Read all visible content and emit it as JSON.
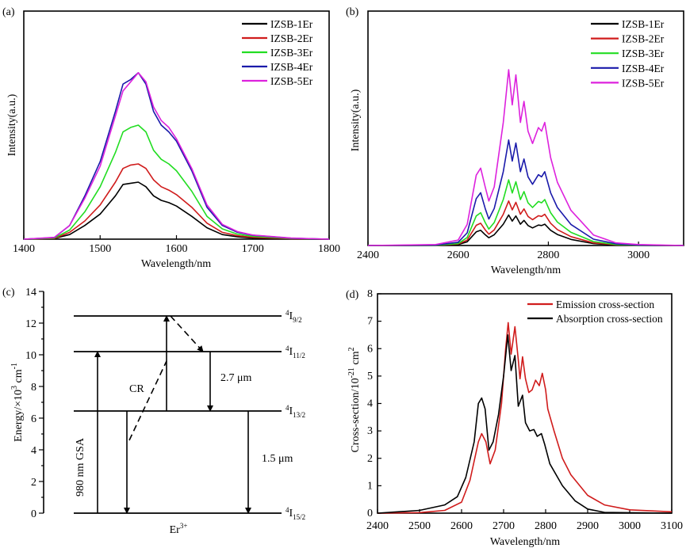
{
  "chart_data": [
    {
      "panel": "(a)",
      "type": "line",
      "xlabel": "Wavelength/nm",
      "ylabel": "Intensity(a.u.)",
      "xlim": [
        1400,
        1800
      ],
      "ylim": [
        0,
        1
      ],
      "xticks": [
        1400,
        1500,
        1600,
        1700,
        1800
      ],
      "yticks_shown": false,
      "grid": false,
      "legend": "top-right",
      "x": [
        1400,
        1440,
        1460,
        1480,
        1500,
        1520,
        1530,
        1540,
        1550,
        1560,
        1570,
        1580,
        1590,
        1600,
        1620,
        1640,
        1660,
        1680,
        1700,
        1750,
        1800
      ],
      "series": [
        {
          "name": "IZSB-1Er",
          "color": "#000000",
          "values": [
            0,
            0.003,
            0.02,
            0.06,
            0.11,
            0.19,
            0.24,
            0.245,
            0.25,
            0.23,
            0.19,
            0.17,
            0.16,
            0.145,
            0.1,
            0.05,
            0.02,
            0.01,
            0.005,
            0.001,
            0
          ]
        },
        {
          "name": "IZSB-2Er",
          "color": "#d01c1c",
          "values": [
            0,
            0.003,
            0.03,
            0.08,
            0.15,
            0.25,
            0.31,
            0.325,
            0.33,
            0.31,
            0.26,
            0.23,
            0.215,
            0.195,
            0.14,
            0.07,
            0.03,
            0.015,
            0.008,
            0.002,
            0
          ]
        },
        {
          "name": "IZSB-3Er",
          "color": "#22dd22",
          "values": [
            0,
            0.005,
            0.04,
            0.12,
            0.23,
            0.38,
            0.47,
            0.49,
            0.5,
            0.47,
            0.39,
            0.35,
            0.33,
            0.3,
            0.21,
            0.1,
            0.045,
            0.022,
            0.012,
            0.003,
            0
          ]
        },
        {
          "name": "IZSB-4Er",
          "color": "#1a1aaa",
          "values": [
            0,
            0.007,
            0.06,
            0.19,
            0.34,
            0.56,
            0.68,
            0.7,
            0.73,
            0.68,
            0.56,
            0.5,
            0.47,
            0.43,
            0.3,
            0.14,
            0.06,
            0.03,
            0.017,
            0.004,
            0
          ]
        },
        {
          "name": "IZSB-5Er",
          "color": "#dd22dd",
          "values": [
            0,
            0.008,
            0.06,
            0.18,
            0.32,
            0.54,
            0.65,
            0.69,
            0.73,
            0.69,
            0.58,
            0.52,
            0.49,
            0.44,
            0.31,
            0.15,
            0.065,
            0.033,
            0.018,
            0.005,
            0
          ]
        }
      ]
    },
    {
      "panel": "(b)",
      "type": "line",
      "xlabel": "Wavelength/nm",
      "ylabel": "Intensity(a.u.)",
      "xlim": [
        2400,
        3100
      ],
      "ylim": [
        0,
        1
      ],
      "xticks": [
        2400,
        2600,
        2800,
        3000
      ],
      "yticks_shown": false,
      "grid": false,
      "legend": "top-right",
      "x": [
        2400,
        2550,
        2600,
        2620,
        2640,
        2650,
        2660,
        2668,
        2680,
        2700,
        2712,
        2720,
        2728,
        2738,
        2746,
        2755,
        2765,
        2778,
        2785,
        2792,
        2805,
        2820,
        2850,
        2900,
        2950,
        3000,
        3100
      ],
      "series": [
        {
          "name": "IZSB-1Er",
          "color": "#000000",
          "values": [
            0,
            0.001,
            0.004,
            0.016,
            0.058,
            0.065,
            0.046,
            0.033,
            0.046,
            0.091,
            0.13,
            0.104,
            0.126,
            0.091,
            0.107,
            0.085,
            0.075,
            0.087,
            0.085,
            0.091,
            0.065,
            0.047,
            0.026,
            0.008,
            0.002,
            0.001,
            0
          ]
        },
        {
          "name": "IZSB-2Er",
          "color": "#d01c1c",
          "values": [
            0,
            0.001,
            0.006,
            0.023,
            0.086,
            0.095,
            0.067,
            0.048,
            0.067,
            0.133,
            0.19,
            0.152,
            0.184,
            0.133,
            0.156,
            0.124,
            0.11,
            0.127,
            0.124,
            0.133,
            0.095,
            0.068,
            0.038,
            0.011,
            0.003,
            0.001,
            0
          ]
        },
        {
          "name": "IZSB-3Er",
          "color": "#22dd22",
          "values": [
            0,
            0.001,
            0.008,
            0.034,
            0.126,
            0.14,
            0.098,
            0.07,
            0.098,
            0.196,
            0.28,
            0.224,
            0.272,
            0.196,
            0.23,
            0.182,
            0.162,
            0.188,
            0.182,
            0.196,
            0.14,
            0.1,
            0.056,
            0.017,
            0.004,
            0.001,
            0
          ]
        },
        {
          "name": "IZSB-4Er",
          "color": "#1a1aaa",
          "values": [
            0,
            0.002,
            0.014,
            0.054,
            0.2,
            0.225,
            0.158,
            0.113,
            0.158,
            0.315,
            0.45,
            0.36,
            0.437,
            0.315,
            0.369,
            0.293,
            0.261,
            0.302,
            0.293,
            0.315,
            0.225,
            0.162,
            0.09,
            0.027,
            0.007,
            0.002,
            0
          ]
        },
        {
          "name": "IZSB-5Er",
          "color": "#dd22dd",
          "values": [
            0,
            0.004,
            0.023,
            0.09,
            0.3,
            0.33,
            0.25,
            0.19,
            0.25,
            0.525,
            0.75,
            0.6,
            0.728,
            0.525,
            0.615,
            0.488,
            0.435,
            0.503,
            0.488,
            0.525,
            0.375,
            0.27,
            0.15,
            0.045,
            0.011,
            0.004,
            0
          ]
        }
      ]
    },
    {
      "panel": "(d)",
      "type": "line",
      "xlabel": "Wavelength/nm",
      "ylabel_parts": [
        "Cross-section/10",
        "-21",
        " cm",
        "2"
      ],
      "xlim": [
        2400,
        3100
      ],
      "ylim": [
        0,
        8
      ],
      "xticks": [
        2400,
        2500,
        2600,
        2700,
        2800,
        2900,
        3000,
        3100
      ],
      "yticks": [
        0,
        1,
        2,
        3,
        4,
        5,
        6,
        7,
        8
      ],
      "grid": false,
      "legend": "top-right",
      "series": [
        {
          "name": "Emission cross-section",
          "color": "#d01c1c",
          "x": [
            2400,
            2500,
            2560,
            2600,
            2620,
            2640,
            2648,
            2658,
            2668,
            2680,
            2695,
            2705,
            2711,
            2718,
            2727,
            2735,
            2739,
            2745,
            2752,
            2760,
            2768,
            2776,
            2785,
            2792,
            2800,
            2805,
            2820,
            2840,
            2860,
            2900,
            2940,
            3000,
            3100
          ],
          "values": [
            0,
            0.02,
            0.1,
            0.4,
            1.2,
            2.6,
            2.9,
            2.6,
            1.8,
            2.3,
            4.0,
            6.0,
            6.95,
            5.8,
            6.8,
            5.6,
            4.9,
            5.7,
            4.9,
            4.4,
            4.5,
            4.85,
            4.65,
            5.1,
            4.5,
            3.8,
            3.0,
            2.0,
            1.4,
            0.65,
            0.3,
            0.12,
            0.05
          ]
        },
        {
          "name": "Absorption cross-section",
          "color": "#000000",
          "x": [
            2400,
            2500,
            2560,
            2590,
            2610,
            2630,
            2640,
            2648,
            2656,
            2665,
            2675,
            2688,
            2700,
            2710,
            2718,
            2727,
            2735,
            2745,
            2752,
            2762,
            2772,
            2780,
            2790,
            2798,
            2810,
            2840,
            2870,
            2900,
            2940,
            3100
          ],
          "values": [
            0,
            0.1,
            0.3,
            0.6,
            1.3,
            2.6,
            4.0,
            4.2,
            3.8,
            2.3,
            2.6,
            3.6,
            5.0,
            6.5,
            5.2,
            5.75,
            3.9,
            4.3,
            3.3,
            3.0,
            3.05,
            2.8,
            2.9,
            2.5,
            1.8,
            1.0,
            0.45,
            0.15,
            0.03,
            0
          ]
        }
      ]
    }
  ],
  "diagram": {
    "panel": "(c)",
    "ylabel_parts": [
      "Energy/×10",
      "3",
      " cm",
      "-1"
    ],
    "ylim": [
      0,
      14
    ],
    "yticks": [
      0,
      2,
      4,
      6,
      8,
      10,
      12,
      14
    ],
    "ion_parts": [
      "Er",
      "3+"
    ],
    "levels": [
      {
        "energy": 12.45,
        "sup": "4",
        "main": "I",
        "sub": "9/2"
      },
      {
        "energy": 10.2,
        "sup": "4",
        "main": "I",
        "sub": "11/2"
      },
      {
        "energy": 6.45,
        "sup": "4",
        "main": "I",
        "sub": "13/2"
      },
      {
        "energy": 0,
        "sup": "4",
        "main": "I",
        "sub": "15/2"
      }
    ],
    "transitions": [
      {
        "label": "980 nm GSA",
        "from": 0,
        "to": 10.2,
        "style": "solid"
      },
      {
        "label": "",
        "from": 6.45,
        "to": 0,
        "style": "solid"
      },
      {
        "label": "",
        "from": 6.45,
        "to": 12.45,
        "style": "solid"
      },
      {
        "label": "CR",
        "from": 4.6,
        "to": 9.6,
        "style": "dashed"
      },
      {
        "label": "",
        "from": 12.45,
        "to": 10.2,
        "style": "dashed"
      },
      {
        "label": "2.7 μm",
        "from": 10.2,
        "to": 6.45,
        "style": "solid"
      },
      {
        "label": "1.5 μm",
        "from": 6.45,
        "to": 0,
        "style": "solid"
      }
    ]
  }
}
